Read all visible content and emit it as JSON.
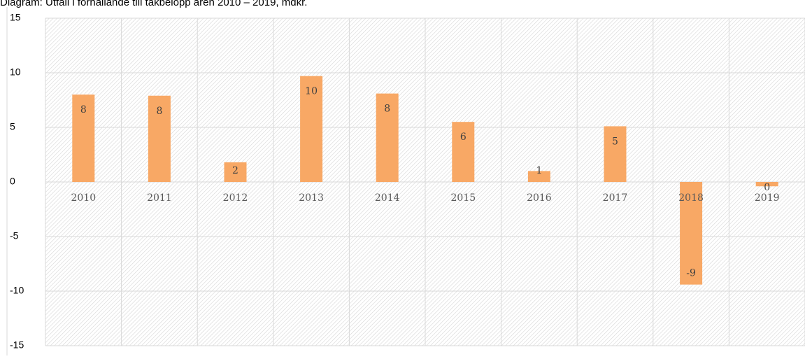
{
  "chart_data": {
    "type": "bar",
    "title": "Diagram: Utfall i förhållande till takbelopp åren 2010 – 2019, mdkr.",
    "categories": [
      "2010",
      "2011",
      "2012",
      "2013",
      "2014",
      "2015",
      "2016",
      "2017",
      "2018",
      "2019"
    ],
    "values": [
      8.0,
      7.9,
      1.8,
      9.7,
      8.1,
      5.5,
      1.0,
      5.1,
      -9.4,
      -0.4
    ],
    "value_labels": [
      "8",
      "8",
      "2",
      "10",
      "8",
      "6",
      "1",
      "5",
      "-9",
      "0"
    ],
    "color": "#f8a865",
    "ylim": [
      -15,
      15
    ],
    "yticks": [
      -15,
      -10,
      -5,
      0,
      5,
      10,
      15
    ],
    "grid": true
  }
}
